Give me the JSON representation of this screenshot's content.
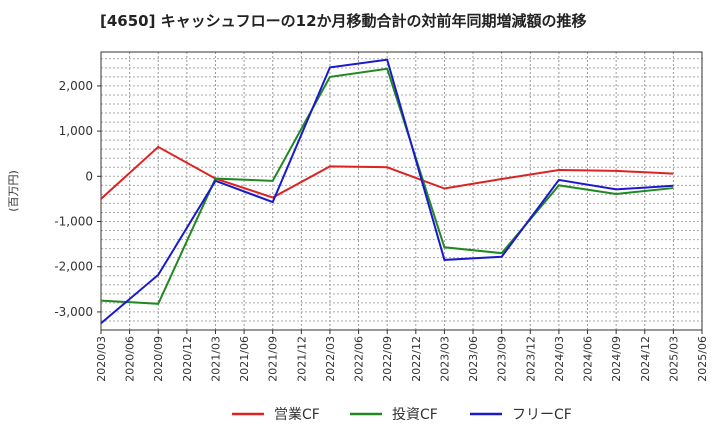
{
  "chart_data": {
    "type": "line",
    "title": "[4650]  キャッシュフローの12か月移動合計の対前年同期増減額の推移",
    "ylabel": "(百万円)",
    "xlabel": "",
    "x": [
      "2020/03",
      "2020/06",
      "2020/09",
      "2020/12",
      "2021/03",
      "2021/06",
      "2021/09",
      "2021/12",
      "2022/03",
      "2022/06",
      "2022/09",
      "2022/12",
      "2023/03",
      "2023/06",
      "2023/09",
      "2023/12",
      "2024/03",
      "2024/06",
      "2024/09",
      "2024/12",
      "2025/03",
      "2025/06"
    ],
    "y_ticks": [
      2000,
      1000,
      0,
      -1000,
      -2000,
      -3000
    ],
    "y_tick_labels": [
      "2,000",
      "1,000",
      "0",
      "-1,000",
      "-2,000",
      "-3,000"
    ],
    "ylim": [
      -3400,
      2750
    ],
    "grid": true,
    "legend": "bottom",
    "series": [
      {
        "name": "営業CF",
        "color": "#dd2222",
        "points": [
          [
            "2020/03",
            -500
          ],
          [
            "2020/09",
            650
          ],
          [
            "2021/03",
            -50
          ],
          [
            "2021/09",
            -470
          ],
          [
            "2022/03",
            220
          ],
          [
            "2022/09",
            200
          ],
          [
            "2023/03",
            -270
          ],
          [
            "2023/09",
            -60
          ],
          [
            "2024/03",
            140
          ],
          [
            "2024/09",
            120
          ],
          [
            "2025/03",
            60
          ]
        ]
      },
      {
        "name": "投資CF",
        "color": "#228822",
        "points": [
          [
            "2020/03",
            -2750
          ],
          [
            "2020/09",
            -2820
          ],
          [
            "2021/03",
            -50
          ],
          [
            "2021/09",
            -100
          ],
          [
            "2022/03",
            2200
          ],
          [
            "2022/09",
            2380
          ],
          [
            "2023/03",
            -1570
          ],
          [
            "2023/09",
            -1700
          ],
          [
            "2024/03",
            -200
          ],
          [
            "2024/09",
            -390
          ],
          [
            "2025/03",
            -260
          ]
        ]
      },
      {
        "name": "フリーCF",
        "color": "#1a1acc",
        "points": [
          [
            "2020/03",
            -3250
          ],
          [
            "2020/09",
            -2180
          ],
          [
            "2021/03",
            -100
          ],
          [
            "2021/09",
            -570
          ],
          [
            "2022/03",
            2410
          ],
          [
            "2022/09",
            2580
          ],
          [
            "2023/03",
            -1850
          ],
          [
            "2023/09",
            -1780
          ],
          [
            "2024/03",
            -80
          ],
          [
            "2024/09",
            -290
          ],
          [
            "2025/03",
            -210
          ]
        ]
      }
    ]
  }
}
